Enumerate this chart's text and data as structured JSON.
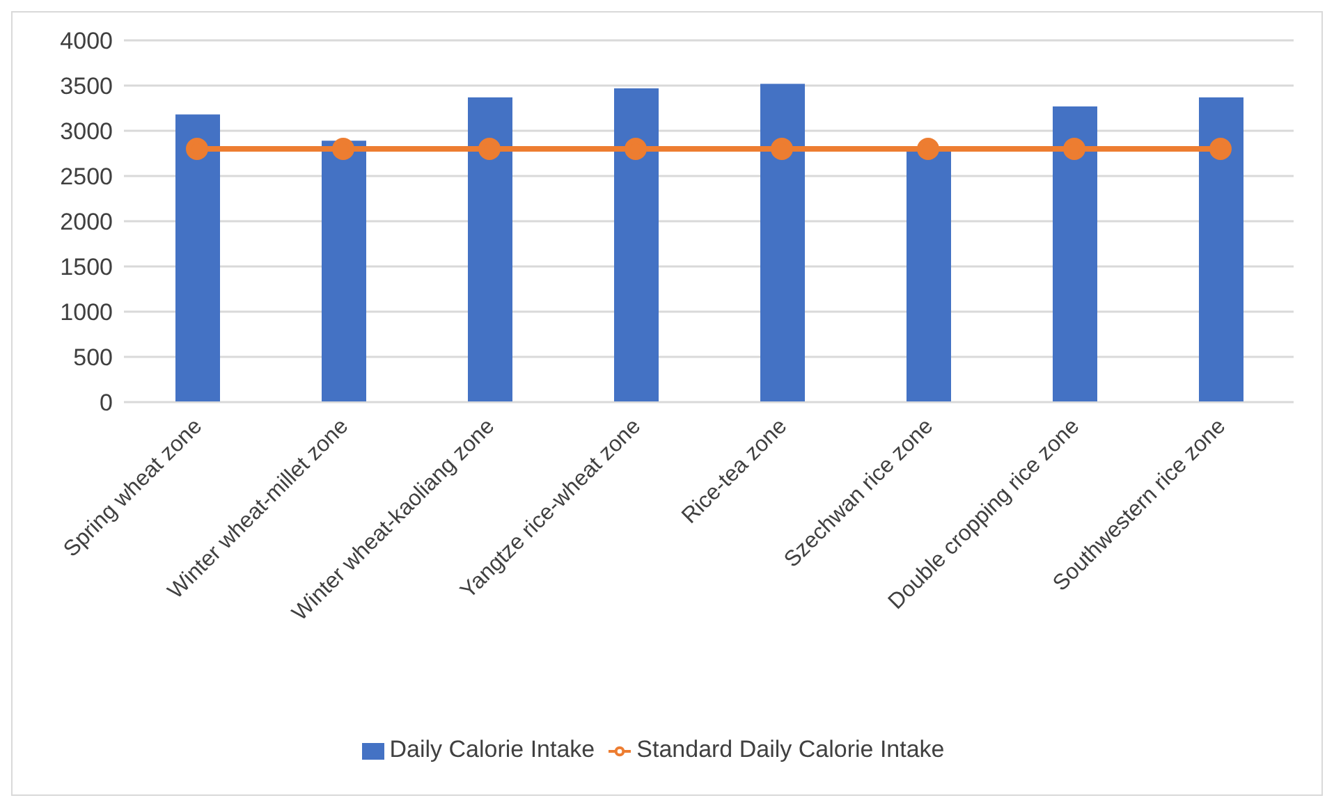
{
  "chart_data": {
    "type": "bar",
    "categories": [
      "Spring wheat zone",
      "Winter wheat-millet zone",
      "Winter wheat-kaoliang zone",
      "Yangtze rice-wheat zone",
      "Rice-tea zone",
      "Szechwan rice zone",
      "Double cropping rice zone",
      "Southwestern rice zone"
    ],
    "series": [
      {
        "name": "Daily Calorie Intake",
        "color": "#4472c4",
        "values": [
          3180,
          2890,
          3370,
          3470,
          3520,
          2770,
          3270,
          3370
        ]
      },
      {
        "name": "Standard Daily Calorie Intake",
        "type": "line",
        "color": "#ed7d31",
        "values": [
          2800,
          2800,
          2800,
          2800,
          2800,
          2800,
          2800,
          2800
        ]
      }
    ],
    "ylim": [
      0,
      4000
    ],
    "yticks": [
      0,
      500,
      1000,
      1500,
      2000,
      2500,
      3000,
      3500,
      4000
    ],
    "grid": "y",
    "legend": "bottom",
    "marker": "circle"
  }
}
